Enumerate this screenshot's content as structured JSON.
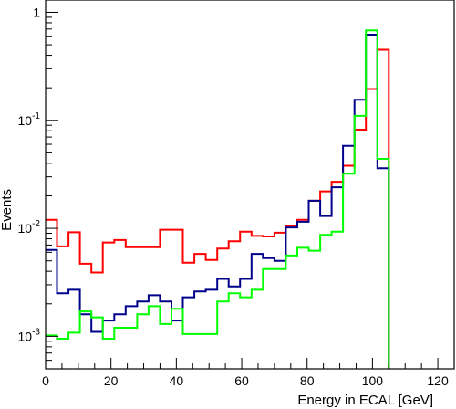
{
  "chart_data": {
    "type": "line",
    "title": "",
    "xlabel": "Energy in ECAL [GeV]",
    "ylabel": "Events",
    "xlim": [
      0,
      125
    ],
    "ylim": [
      0.0005,
      1.3
    ],
    "yscale": "log",
    "grid": false,
    "x_ticks": [
      {
        "value": 0,
        "label": "0"
      },
      {
        "value": 20,
        "label": "20"
      },
      {
        "value": 40,
        "label": "40"
      },
      {
        "value": 60,
        "label": "60"
      },
      {
        "value": 80,
        "label": "80"
      },
      {
        "value": 100,
        "label": "100"
      },
      {
        "value": 120,
        "label": "120"
      }
    ],
    "y_ticks": [
      {
        "value": 0.001,
        "base": "10",
        "exp": "-3"
      },
      {
        "value": 0.01,
        "base": "10",
        "exp": "-2"
      },
      {
        "value": 0.1,
        "base": "10",
        "exp": "-1"
      },
      {
        "value": 1,
        "base": "1",
        "exp": ""
      }
    ],
    "bin_edges": [
      0,
      3.5,
      7,
      10.5,
      14,
      17.5,
      21,
      24.5,
      28,
      31.5,
      35,
      38.5,
      42,
      45.5,
      49,
      52.5,
      56,
      59.5,
      63,
      66.5,
      70,
      73.5,
      77,
      80.5,
      84,
      87.5,
      91,
      94.5,
      98,
      101.5,
      105
    ],
    "series": [
      {
        "name": "",
        "color": "#ff0000",
        "values": [
          0.012,
          0.0068,
          0.0092,
          0.0047,
          0.0039,
          0.0074,
          0.0078,
          0.0067,
          0.0067,
          0.0067,
          0.0097,
          0.0097,
          0.0048,
          0.0058,
          0.0051,
          0.0065,
          0.0076,
          0.0093,
          0.0085,
          0.0084,
          0.0091,
          0.0106,
          0.012,
          0.018,
          0.022,
          0.027,
          0.038,
          0.082,
          0.195,
          0.45,
          0.0005
        ]
      },
      {
        "name": "",
        "color": "#00008b",
        "values": [
          0.0063,
          0.0025,
          0.0027,
          0.0016,
          0.0011,
          0.0014,
          0.0016,
          0.0019,
          0.0021,
          0.0024,
          0.0021,
          0.0014,
          0.0023,
          0.0026,
          0.0027,
          0.0034,
          0.0029,
          0.0034,
          0.0058,
          0.0053,
          0.005,
          0.0102,
          0.0115,
          0.018,
          0.013,
          0.024,
          0.058,
          0.155,
          0.62,
          0.036,
          0.0005
        ]
      },
      {
        "name": "",
        "color": "#00ff00",
        "values": [
          0.00102,
          0.00095,
          0.00108,
          0.0017,
          0.0015,
          0.00095,
          0.0012,
          0.0012,
          0.0016,
          0.0019,
          0.0013,
          0.0018,
          0.00105,
          0.00105,
          0.00105,
          0.0021,
          0.0025,
          0.0023,
          0.0027,
          0.0042,
          0.0042,
          0.0056,
          0.0066,
          0.0062,
          0.0087,
          0.0093,
          0.032,
          0.11,
          0.68,
          0.044,
          0.0005
        ]
      }
    ]
  }
}
